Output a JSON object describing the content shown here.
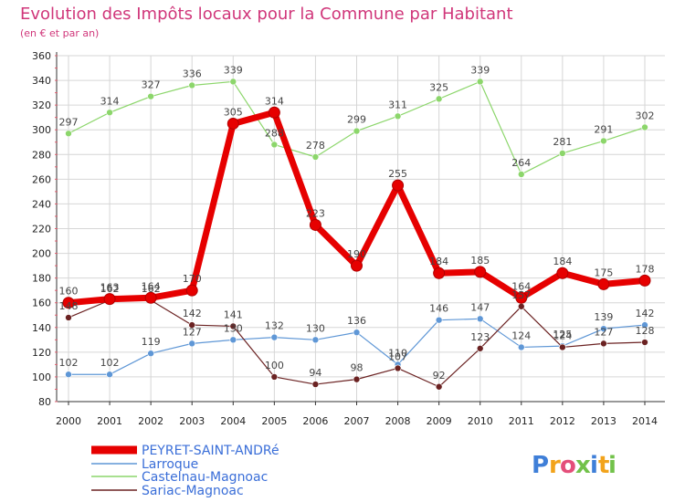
{
  "chart_data": {
    "type": "line",
    "title": "Evolution des Impôts locaux pour la Commune par Habitant",
    "subtitle": "(en € et par an)",
    "categories": [
      "2000",
      "2001",
      "2002",
      "2003",
      "2004",
      "2005",
      "2006",
      "2007",
      "2008",
      "2009",
      "2010",
      "2011",
      "2012",
      "2013",
      "2014"
    ],
    "ylim": [
      80,
      360
    ],
    "yticks": [
      80,
      100,
      120,
      140,
      160,
      180,
      200,
      220,
      240,
      260,
      280,
      300,
      320,
      340,
      360
    ],
    "grid": true,
    "legend_position": "bottom-left",
    "series": [
      {
        "name": "PEYRET-SAINT-ANDRé",
        "color": "#e60000",
        "values": [
          160,
          163,
          164,
          170,
          305,
          314,
          223,
          190,
          255,
          184,
          185,
          164,
          184,
          175,
          178
        ],
        "labels": [
          "160",
          "163",
          "164",
          "170",
          "305",
          "314",
          "223",
          "190",
          "255",
          "184",
          "185",
          "164",
          "184",
          "175",
          "178"
        ]
      },
      {
        "name": "Larroque",
        "color": "#5f97d6",
        "values": [
          102,
          102,
          119,
          127,
          130,
          132,
          130,
          136,
          110,
          146,
          147,
          124,
          125,
          139,
          142
        ],
        "labels": [
          "102",
          "102",
          "119",
          "127",
          "130",
          "132",
          "130",
          "136",
          "110",
          "146",
          "147",
          "124",
          "125",
          "139",
          "142"
        ]
      },
      {
        "name": "Castelnau-Magnoac",
        "color": "#8cd66b",
        "values": [
          297,
          314,
          327,
          336,
          339,
          288,
          278,
          299,
          311,
          325,
          339,
          264,
          281,
          291,
          302
        ],
        "labels": [
          "297",
          "314",
          "327",
          "336",
          "339",
          "288",
          "278",
          "299",
          "311",
          "325",
          "339",
          "264",
          "281",
          "291",
          "302"
        ]
      },
      {
        "name": "Sariac-Magnoac",
        "color": "#6b2222",
        "values": [
          148,
          162,
          162,
          142,
          141,
          100,
          94,
          98,
          107,
          92,
          123,
          157,
          124,
          127,
          128
        ],
        "labels": [
          "148",
          "162",
          "162",
          "142",
          "141",
          "100",
          "94",
          "98",
          "107",
          "92",
          "123",
          "157",
          "124",
          "127",
          "128"
        ]
      }
    ]
  },
  "brand": {
    "letters": [
      "P",
      "r",
      "o",
      "x",
      "i",
      "t",
      "i"
    ],
    "colors": [
      "#3f7fd8",
      "#f2a31b",
      "#e44f7a",
      "#72c24a",
      "#3f7fd8",
      "#f2a31b",
      "#72c24a"
    ]
  }
}
